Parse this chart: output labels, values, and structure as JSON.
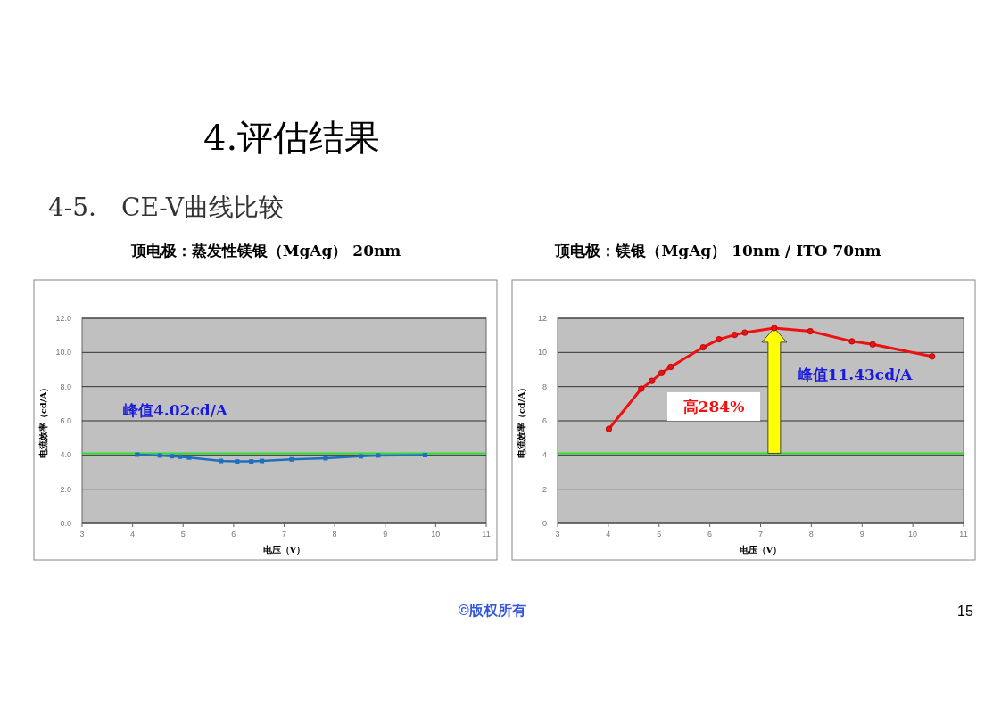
{
  "chart_data": [
    {
      "type": "line",
      "title": "顶电极：蒸发性镁银（MgAg） 20nm",
      "xlabel": "电压（V）",
      "ylabel": "电流效率（cd/A）",
      "xlim": [
        3,
        11
      ],
      "xticks": [
        3,
        4,
        5,
        6,
        7,
        8,
        9,
        10,
        11
      ],
      "ylim": [
        0,
        12
      ],
      "yticks": [
        {
          "value": 0,
          "label": "0.0"
        },
        {
          "value": 2,
          "label": "2.0"
        },
        {
          "value": 4,
          "label": "4.0"
        },
        {
          "value": 6,
          "label": "6.0"
        },
        {
          "value": 8,
          "label": "8.0"
        },
        {
          "value": 10,
          "label": "10.0"
        },
        {
          "value": 12,
          "label": "12.0"
        }
      ],
      "grid": "y",
      "marker": "square",
      "line_style": "solid",
      "series": [
        {
          "color": "#1f6fc0",
          "x": [
            4.09,
            4.54,
            4.78,
            4.94,
            5.12,
            5.75,
            6.07,
            6.35,
            6.56,
            7.15,
            7.82,
            8.52,
            8.86,
            9.79
          ],
          "values": [
            4.02,
            3.97,
            3.93,
            3.9,
            3.85,
            3.65,
            3.62,
            3.62,
            3.65,
            3.74,
            3.81,
            3.92,
            3.97,
            3.99
          ]
        }
      ],
      "ref_lines": [
        {
          "axis": "y",
          "value": 4.1,
          "color": "#33dd33"
        }
      ],
      "annotations": [
        "4.评估结果",
        "4-5.　CE-V曲线比较",
        "峰值4.02cd/A",
        "©版权所有"
      ]
    },
    {
      "type": "line",
      "title": "顶电极：镁银（MgAg） 10nm / ITO 70nm",
      "xlabel": "电压（V）",
      "ylabel": "电流效率（cd/A）",
      "xlim": [
        3,
        11
      ],
      "xticks": [
        3,
        4,
        5,
        6,
        7,
        8,
        9,
        10,
        11
      ],
      "ylim": [
        0,
        12
      ],
      "yticks": [
        0,
        2,
        4,
        6,
        8,
        10,
        12
      ],
      "grid": "y",
      "marker": "circle",
      "line_style": "solid",
      "series": [
        {
          "color": "#ee1111",
          "x": [
            4.01,
            4.65,
            4.86,
            5.05,
            5.23,
            5.87,
            6.18,
            6.49,
            6.69,
            7.27,
            7.98,
            8.8,
            9.21,
            10.38
          ],
          "values": [
            5.52,
            7.88,
            8.34,
            8.8,
            9.16,
            10.3,
            10.77,
            11.03,
            11.16,
            11.43,
            11.24,
            10.65,
            10.47,
            9.77
          ]
        }
      ],
      "ref_lines": [
        {
          "axis": "y",
          "value": 4.1,
          "color": "#33dd33"
        }
      ],
      "annotations": [
        "高284%",
        "峰值11.43cd/A",
        "15"
      ]
    }
  ]
}
